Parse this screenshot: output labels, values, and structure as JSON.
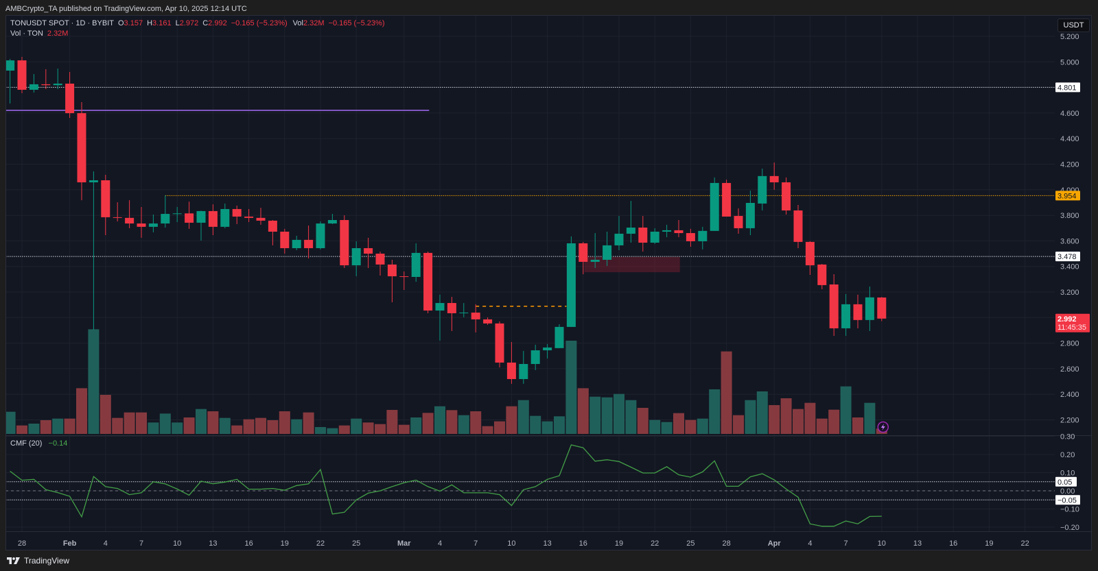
{
  "header": {
    "publish_text": "AMBCrypto_TA published on TradingView.com, Apr 10, 2025 12:14 UTC"
  },
  "legend": {
    "symbol": "TONUSDT SPOT · 1D · BYBIT",
    "open_label": "O",
    "open": "3.157",
    "high_label": "H",
    "high": "3.161",
    "low_label": "L",
    "low": "2.972",
    "close_label": "C",
    "close": "2.992",
    "change": "−0.165 (−5.23%)",
    "vol_label": "Vol",
    "vol": "2.32M",
    "vol_change": "−0.165 (−5.23%)",
    "volume_series_label": "Vol · TON",
    "volume_series_value": "2.32M"
  },
  "price_scale": {
    "currency_button": "USDT"
  },
  "cmf_legend": {
    "label": "CMF (20)",
    "value": "−0.14"
  },
  "footer": {
    "brand": "TradingView",
    "logo_icon": "tradingview-logo"
  },
  "icons": {
    "alert_flash": "lightning-icon"
  },
  "colors": {
    "up": "#089981",
    "down": "#f23645",
    "volume_up": "#20605b",
    "volume_down": "#863a3f",
    "cmf_line": "#43a047",
    "background": "#131722",
    "axis_text": "#b2b5be",
    "grid": "#1e222d"
  },
  "chart_data": [
    {
      "type": "candlestick",
      "title": "TONUSDT SPOT · 1D · BYBIT",
      "xlabel": "",
      "ylabel": "USDT",
      "ylim": [
        2.12,
        5.32
      ],
      "grid": true,
      "x": [
        "2025-01-27",
        "2025-01-28",
        "2025-01-29",
        "2025-01-30",
        "2025-01-31",
        "2025-02-01",
        "2025-02-02",
        "2025-02-03",
        "2025-02-04",
        "2025-02-05",
        "2025-02-06",
        "2025-02-07",
        "2025-02-08",
        "2025-02-09",
        "2025-02-10",
        "2025-02-11",
        "2025-02-12",
        "2025-02-13",
        "2025-02-14",
        "2025-02-15",
        "2025-02-16",
        "2025-02-17",
        "2025-02-18",
        "2025-02-19",
        "2025-02-20",
        "2025-02-21",
        "2025-02-22",
        "2025-02-23",
        "2025-02-24",
        "2025-02-25",
        "2025-02-26",
        "2025-02-27",
        "2025-02-28",
        "2025-03-01",
        "2025-03-02",
        "2025-03-03",
        "2025-03-04",
        "2025-03-05",
        "2025-03-06",
        "2025-03-07",
        "2025-03-08",
        "2025-03-09",
        "2025-03-10",
        "2025-03-11",
        "2025-03-12",
        "2025-03-13",
        "2025-03-14",
        "2025-03-15",
        "2025-03-16",
        "2025-03-17",
        "2025-03-18",
        "2025-03-19",
        "2025-03-20",
        "2025-03-21",
        "2025-03-22",
        "2025-03-23",
        "2025-03-24",
        "2025-03-25",
        "2025-03-26",
        "2025-03-27",
        "2025-03-28",
        "2025-03-29",
        "2025-03-30",
        "2025-03-31",
        "2025-04-01",
        "2025-04-02",
        "2025-04-03",
        "2025-04-04",
        "2025-04-05",
        "2025-04-06",
        "2025-04-07",
        "2025-04-08",
        "2025-04-09",
        "2025-04-10"
      ],
      "open": [
        4.932,
        5.012,
        4.782,
        4.825,
        4.818,
        4.83,
        4.599,
        4.058,
        4.074,
        3.785,
        3.78,
        3.736,
        3.71,
        3.736,
        3.811,
        3.815,
        3.742,
        3.833,
        3.71,
        3.849,
        3.79,
        3.78,
        3.758,
        3.672,
        3.543,
        3.608,
        3.543,
        3.736,
        3.763,
        3.409,
        3.543,
        3.5,
        3.415,
        3.323,
        3.318,
        3.506,
        3.055,
        3.114,
        3.034,
        3.039,
        2.986,
        2.954,
        2.648,
        2.519,
        2.637,
        2.744,
        2.761,
        2.927,
        3.581,
        3.436,
        3.452,
        3.565,
        3.656,
        3.704,
        3.586,
        3.672,
        3.683,
        3.661,
        3.597,
        3.678,
        4.053,
        3.795,
        3.699,
        3.892,
        4.107,
        4.058,
        3.838,
        3.592,
        3.415,
        3.259,
        2.916,
        3.104,
        2.981,
        3.157
      ],
      "high": [
        5.023,
        5.039,
        4.905,
        4.943,
        4.948,
        4.921,
        4.685,
        4.144,
        4.117,
        3.902,
        3.918,
        3.865,
        3.806,
        3.956,
        3.865,
        3.907,
        3.836,
        3.886,
        3.892,
        3.876,
        3.849,
        3.859,
        3.763,
        3.694,
        3.64,
        3.72,
        3.752,
        3.811,
        3.8,
        3.597,
        3.624,
        3.516,
        3.452,
        3.361,
        3.581,
        3.516,
        3.179,
        3.162,
        3.114,
        3.104,
        3.002,
        2.97,
        2.809,
        2.739,
        2.788,
        2.793,
        2.948,
        3.635,
        3.592,
        3.661,
        3.672,
        3.795,
        3.913,
        3.795,
        3.699,
        3.726,
        3.763,
        3.694,
        3.71,
        4.096,
        4.079,
        3.854,
        3.993,
        4.165,
        4.213,
        4.096,
        3.881,
        3.597,
        3.42,
        3.339,
        3.184,
        3.179,
        3.243,
        3.161
      ],
      "low": [
        4.675,
        4.755,
        4.76,
        4.787,
        4.787,
        4.562,
        3.918,
        2.905,
        3.645,
        3.752,
        3.699,
        3.624,
        3.667,
        3.704,
        3.747,
        3.694,
        3.602,
        3.645,
        3.699,
        3.731,
        3.747,
        3.726,
        3.565,
        3.5,
        3.527,
        3.463,
        3.533,
        3.731,
        3.388,
        3.323,
        3.388,
        3.329,
        3.12,
        3.216,
        3.28,
        3.034,
        2.82,
        2.895,
        3.002,
        2.884,
        2.943,
        2.61,
        2.482,
        2.482,
        2.589,
        2.68,
        2.761,
        2.927,
        3.339,
        3.388,
        3.404,
        3.527,
        3.586,
        3.516,
        3.576,
        3.629,
        3.629,
        3.554,
        3.533,
        3.678,
        3.79,
        3.656,
        3.645,
        3.838,
        4.0,
        3.806,
        3.543,
        3.334,
        3.222,
        2.857,
        2.857,
        2.916,
        2.895,
        2.972
      ],
      "close": [
        5.012,
        4.782,
        4.825,
        4.818,
        4.83,
        4.599,
        4.058,
        4.074,
        3.785,
        3.78,
        3.736,
        3.71,
        3.736,
        3.811,
        3.815,
        3.742,
        3.833,
        3.71,
        3.849,
        3.79,
        3.78,
        3.758,
        3.672,
        3.543,
        3.608,
        3.543,
        3.736,
        3.763,
        3.409,
        3.543,
        3.5,
        3.415,
        3.323,
        3.318,
        3.506,
        3.055,
        3.114,
        3.034,
        3.039,
        2.986,
        2.954,
        2.648,
        2.519,
        2.637,
        2.744,
        2.766,
        2.927,
        3.581,
        3.436,
        3.452,
        3.565,
        3.656,
        3.704,
        3.586,
        3.672,
        3.683,
        3.661,
        3.597,
        3.678,
        4.053,
        3.79,
        3.699,
        3.897,
        4.107,
        4.058,
        3.838,
        3.592,
        3.409,
        3.254,
        2.916,
        3.104,
        2.981,
        3.158,
        2.992
      ],
      "yticks": [
        5.2,
        5.0,
        4.8,
        4.6,
        4.4,
        4.2,
        4.0,
        3.8,
        3.6,
        3.4,
        3.2,
        3.0,
        2.8,
        2.6,
        2.4,
        2.2
      ],
      "xticks": [
        {
          "label": "28",
          "index": 1
        },
        {
          "label": "Feb",
          "index": 5
        },
        {
          "label": "4",
          "index": 8
        },
        {
          "label": "7",
          "index": 11
        },
        {
          "label": "10",
          "index": 14
        },
        {
          "label": "13",
          "index": 17
        },
        {
          "label": "16",
          "index": 20
        },
        {
          "label": "19",
          "index": 23
        },
        {
          "label": "22",
          "index": 26
        },
        {
          "label": "25",
          "index": 29
        },
        {
          "label": "Mar",
          "index": 33
        },
        {
          "label": "4",
          "index": 36
        },
        {
          "label": "7",
          "index": 39
        },
        {
          "label": "10",
          "index": 42
        },
        {
          "label": "13",
          "index": 45
        },
        {
          "label": "16",
          "index": 48
        },
        {
          "label": "19",
          "index": 51
        },
        {
          "label": "22",
          "index": 54
        },
        {
          "label": "25",
          "index": 57
        },
        {
          "label": "28",
          "index": 60
        },
        {
          "label": "Apr",
          "index": 64
        },
        {
          "label": "4",
          "index": 67
        },
        {
          "label": "7",
          "index": 70
        },
        {
          "label": "10",
          "index": 73
        },
        {
          "label": "13",
          "index": 76
        },
        {
          "label": "16",
          "index": 79
        },
        {
          "label": "19",
          "index": 82
        },
        {
          "label": "22",
          "index": 85
        }
      ],
      "horizontal_lines": [
        {
          "name": "resistance-line-4801",
          "price": 4.801,
          "style": "dotted",
          "color": "#d1d4dc",
          "width": 1,
          "from_index": null,
          "to_index": null,
          "label": "4.801",
          "label_bg": "#ffffff",
          "label_fg": "#131722"
        },
        {
          "name": "trendline-purple",
          "price": 4.621,
          "style": "solid",
          "color": "#7e57c2",
          "width": 2,
          "from_index": null,
          "to_index": 35.1,
          "label": null
        },
        {
          "name": "resistance-line-3954",
          "price": 3.954,
          "style": "dotted",
          "color": "#f7a600",
          "width": 1,
          "from_index": 13,
          "to_index": null,
          "label": "3.954",
          "label_bg": "#f7a600",
          "label_fg": "#131722"
        },
        {
          "name": "support-line-3478",
          "price": 3.478,
          "style": "dotted",
          "color": "#d1d4dc",
          "width": 1,
          "from_index": null,
          "to_index": null,
          "label": "3.478",
          "label_bg": "#ffffff",
          "label_fg": "#131722"
        },
        {
          "name": "orange-dashed-level",
          "price": 3.089,
          "style": "dashed",
          "color": "#ff9800",
          "width": 1.5,
          "from_index": 39,
          "to_index": 46.6,
          "label": null
        }
      ],
      "zones": [
        {
          "name": "bearish-order-block",
          "top": 3.474,
          "bottom": 3.355,
          "from_index": 48.1,
          "to_index": 56.1,
          "color": "rgba(120,30,45,0.5)"
        }
      ],
      "last_price": {
        "value": "2.992",
        "price": 2.992,
        "countdown": "11:45:35",
        "color": "#f23645"
      }
    },
    {
      "type": "bar",
      "title": "Vol · TON",
      "unit": "M TON",
      "values": [
        9.7,
        3.7,
        4.5,
        6.0,
        6.7,
        6.7,
        20.0,
        45.8,
        17.1,
        7.0,
        9.4,
        9.4,
        5.0,
        8.9,
        5.0,
        7.2,
        10.9,
        9.9,
        7.0,
        3.7,
        6.4,
        7.0,
        6.0,
        9.9,
        6.4,
        9.4,
        3.0,
        2.5,
        3.7,
        6.7,
        5.0,
        4.3,
        10.5,
        4.0,
        7.2,
        9.2,
        12.1,
        10.4,
        8.2,
        9.9,
        3.4,
        5.5,
        12.1,
        14.8,
        7.9,
        5.5,
        7.7,
        40.8,
        20.0,
        16.3,
        16.0,
        17.5,
        14.8,
        11.4,
        6.1,
        5.2,
        9.1,
        6.1,
        6.7,
        19.5,
        36.1,
        8.2,
        14.8,
        18.6,
        12.6,
        15.6,
        10.9,
        13.6,
        6.7,
        10.6,
        20.8,
        7.2,
        13.6,
        2.32
      ]
    },
    {
      "type": "line",
      "title": "CMF (20)",
      "ylim": [
        -0.22,
        0.31
      ],
      "yticks": [
        0.3,
        0.2,
        0.1,
        0.0,
        -0.1,
        -0.2
      ],
      "ytick_labels": [
        "0.30",
        "0.20",
        "0.10",
        "0.00",
        "−0.10",
        "−0.20"
      ],
      "levels": [
        {
          "value": 0.05,
          "style": "dotted",
          "color": "#d1d4dc",
          "label": "0.05"
        },
        {
          "value": 0.0,
          "style": "dashed",
          "color": "#787b86",
          "label": null
        },
        {
          "value": -0.05,
          "style": "dotted",
          "color": "#d1d4dc",
          "label": "−0.05"
        }
      ],
      "values": [
        0.108,
        0.058,
        0.063,
        0.006,
        -0.01,
        -0.03,
        -0.143,
        0.079,
        0.023,
        0.013,
        -0.021,
        -0.011,
        0.05,
        0.038,
        0.01,
        -0.024,
        0.053,
        0.039,
        0.048,
        0.063,
        0.009,
        0.009,
        0.013,
        0.003,
        0.029,
        0.038,
        0.117,
        -0.128,
        -0.118,
        -0.05,
        -0.013,
        0.0,
        0.023,
        0.044,
        0.059,
        0.023,
        -0.002,
        0.033,
        -0.011,
        -0.011,
        -0.011,
        -0.021,
        -0.081,
        0.006,
        0.023,
        0.063,
        0.083,
        0.253,
        0.237,
        0.163,
        0.171,
        0.161,
        0.13,
        0.098,
        0.098,
        0.133,
        0.088,
        0.075,
        0.104,
        0.165,
        0.025,
        0.025,
        0.077,
        0.094,
        0.06,
        0.01,
        -0.035,
        -0.182,
        -0.195,
        -0.195,
        -0.166,
        -0.182,
        -0.141,
        -0.14
      ]
    }
  ]
}
